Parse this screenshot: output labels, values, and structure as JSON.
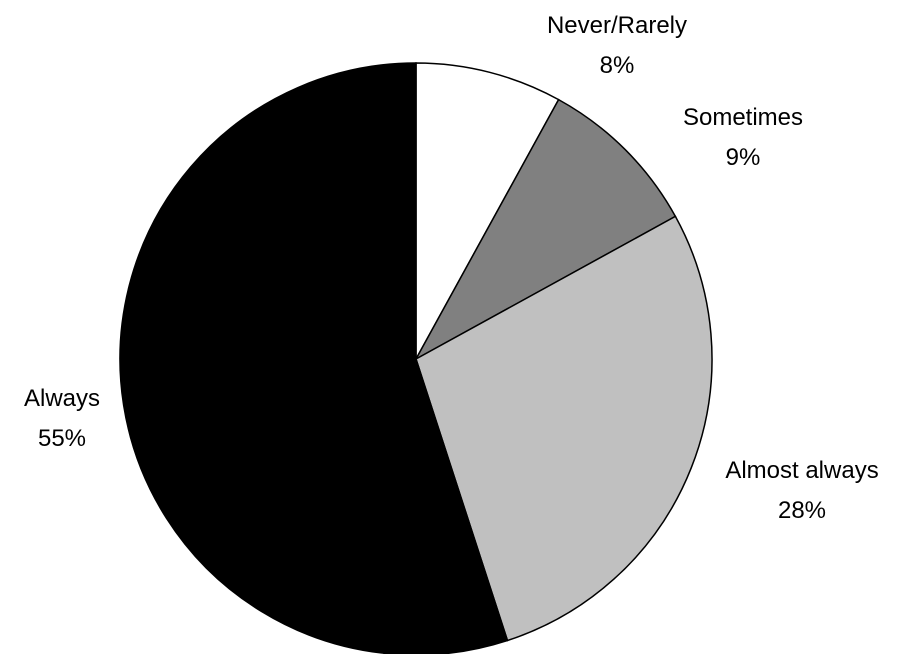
{
  "chart_data": {
    "type": "pie",
    "title": "",
    "start_angle_deg": 0,
    "direction": "clockwise",
    "slices": [
      {
        "label": "Never/Rarely",
        "value": 8,
        "value_label": "8%",
        "color": "#ffffff"
      },
      {
        "label": "Sometimes",
        "value": 9,
        "value_label": "9%",
        "color": "#808080"
      },
      {
        "label": "Almost always",
        "value": 28,
        "value_label": "28%",
        "color": "#c0c0c0"
      },
      {
        "label": "Always",
        "value": 55,
        "value_label": "55%",
        "color": "#000000"
      }
    ]
  }
}
